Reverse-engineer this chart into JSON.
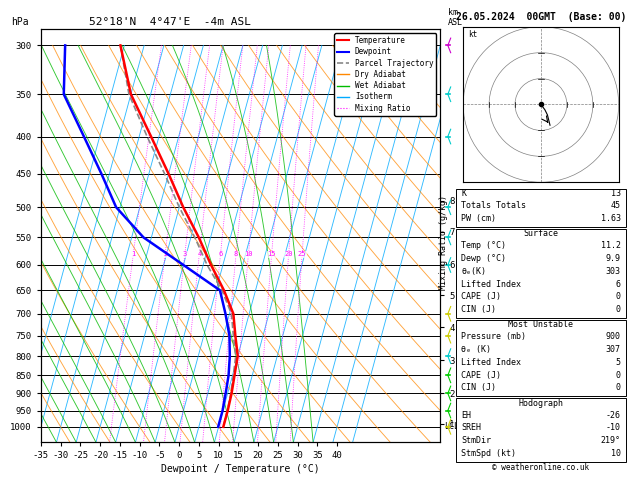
{
  "title_left": "52°18'N  4°47'E  -4m ASL",
  "title_right": "26.05.2024  00GMT  (Base: 00)",
  "xlabel": "Dewpoint / Temperature (°C)",
  "ylabel_left": "hPa",
  "xmin": -35,
  "xmax": 40,
  "skew": 45,
  "pressure_levels": [
    300,
    350,
    400,
    450,
    500,
    550,
    600,
    650,
    700,
    750,
    800,
    850,
    900,
    950,
    1000
  ],
  "temp_profile_C": [
    -41,
    -35,
    -27,
    -20,
    -14,
    -8,
    -3,
    2,
    6,
    8,
    10,
    10.5,
    11,
    11.2,
    11.2
  ],
  "dewp_profile_C": [
    -55,
    -52,
    -44,
    -37,
    -31,
    -22,
    -10,
    1,
    4,
    6.5,
    8,
    9.0,
    9.5,
    9.9,
    9.9
  ],
  "parcel_profile_C": [
    -41,
    -35.5,
    -28,
    -21,
    -15,
    -9,
    -4,
    1.5,
    5.5,
    7.5,
    9.5,
    10.2,
    10.8,
    11.1,
    11.2
  ],
  "temp_color": "#ff0000",
  "dewp_color": "#0000ff",
  "parcel_color": "#888888",
  "dry_adiabat_color": "#ff8800",
  "wet_adiabat_color": "#00bb00",
  "isotherm_color": "#00aaff",
  "mixing_ratio_color": "#ff00ff",
  "background_color": "#ffffff",
  "stats": {
    "K": 13,
    "Totals_Totals": 45,
    "PW_cm": 1.63,
    "Surface": {
      "Temp_C": 11.2,
      "Dewp_C": 9.9,
      "theta_e_K": 303,
      "Lifted_Index": 6,
      "CAPE_J": 0,
      "CIN_J": 0
    },
    "Most_Unstable": {
      "Pressure_mb": 900,
      "theta_e_K": 307,
      "Lifted_Index": 5,
      "CAPE_J": 0,
      "CIN_J": 0
    },
    "Hodograph": {
      "EH": -26,
      "SREH": -10,
      "StmDir": "219°",
      "StmSpd_kt": 10
    }
  },
  "copyright": "© weatheronline.co.uk",
  "mixing_ratio_values": [
    1,
    2,
    3,
    4,
    6,
    8,
    10,
    15,
    20,
    25
  ],
  "km_ticks": [
    1,
    2,
    3,
    4,
    5,
    6,
    7,
    8
  ],
  "km_pressures": [
    990,
    900,
    810,
    730,
    660,
    600,
    540,
    490
  ],
  "wind_barbs": [
    {
      "p": 300,
      "color": "#cc00cc"
    },
    {
      "p": 350,
      "color": "#00cccc"
    },
    {
      "p": 400,
      "color": "#00cccc"
    },
    {
      "p": 500,
      "color": "#00cccc"
    },
    {
      "p": 550,
      "color": "#00cccc"
    },
    {
      "p": 600,
      "color": "#00cccc"
    },
    {
      "p": 700,
      "color": "#cccc00"
    },
    {
      "p": 750,
      "color": "#cccc00"
    },
    {
      "p": 800,
      "color": "#00cccc"
    },
    {
      "p": 850,
      "color": "#00cc00"
    },
    {
      "p": 900,
      "color": "#00cc00"
    },
    {
      "p": 950,
      "color": "#00cc00"
    },
    {
      "p": 1000,
      "color": "#cccc00"
    }
  ]
}
